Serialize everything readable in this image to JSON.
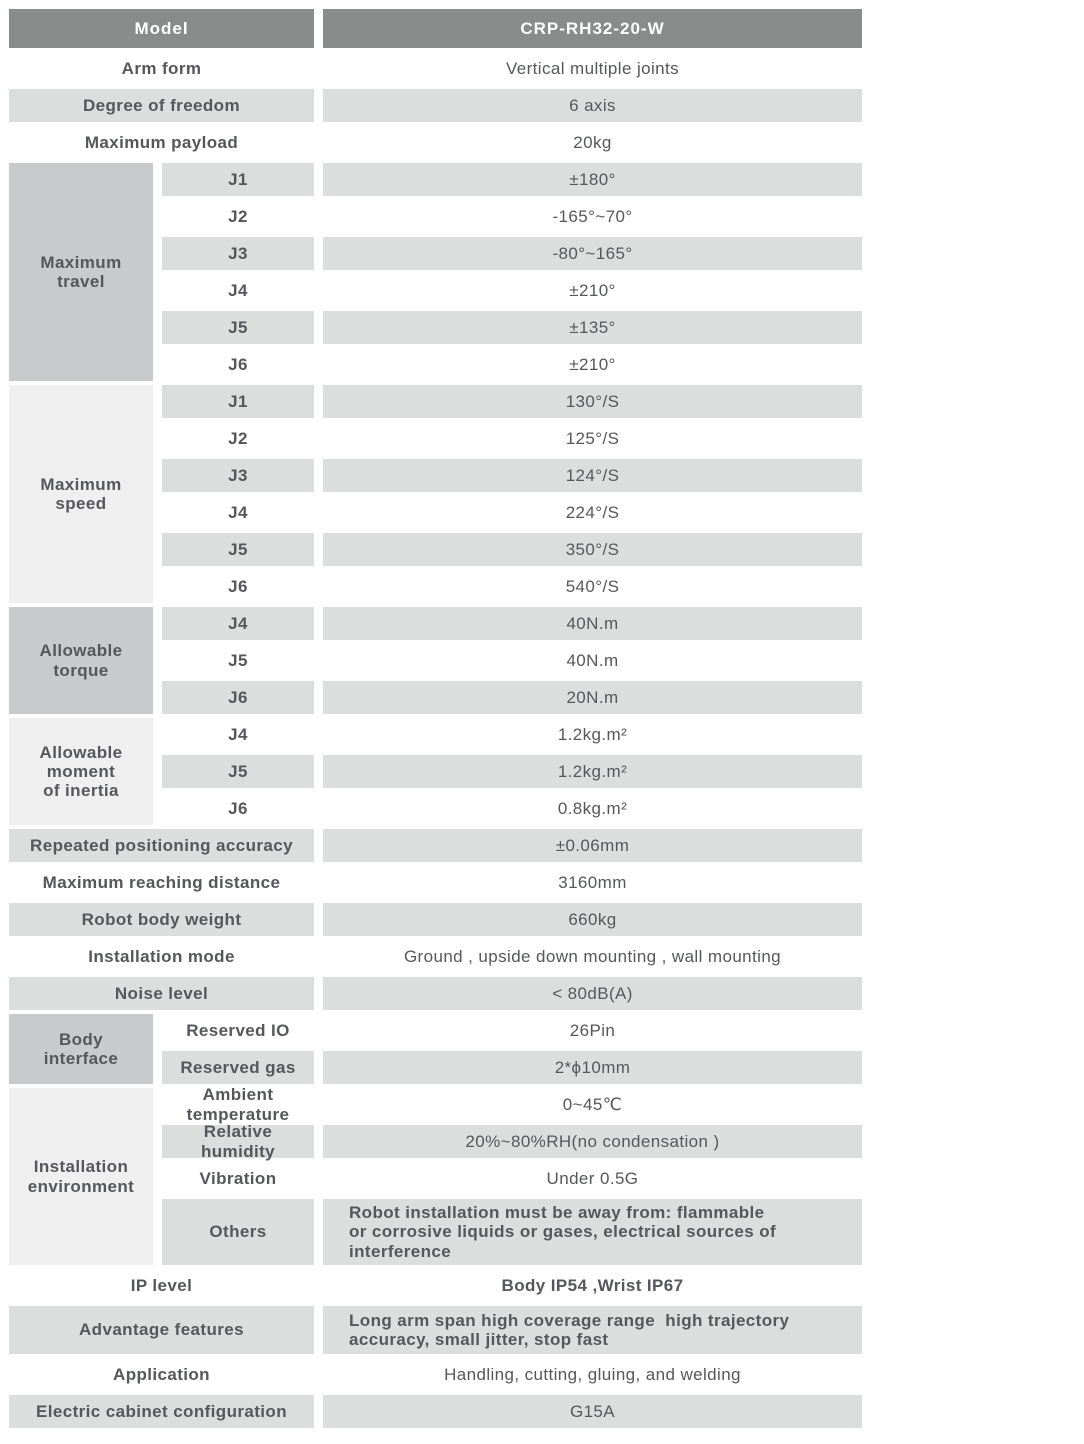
{
  "colors": {
    "header_bg": "#8a8c8c",
    "header_text": "#ffffff",
    "row_gray": "#dcdddd",
    "row_white": "#ffffff",
    "group_dark": "#c9cacb",
    "group_light": "#efefef",
    "text": "#55575a"
  },
  "table": {
    "header": {
      "label": "Model",
      "value": "CRP-RH32-20-W"
    },
    "rows": [
      {
        "label": "Arm form",
        "value": "Vertical multiple joints",
        "shade": "white"
      },
      {
        "label": "Degree of freedom",
        "value": "6 axis",
        "shade": "gray"
      },
      {
        "label": "Maximum payload",
        "value": "20kg",
        "shade": "white"
      },
      {
        "group": {
          "label": "Maximum\ntravel",
          "span": 6,
          "tone": "dark"
        },
        "sub": "J1",
        "value": "±180°",
        "shade": "gray"
      },
      {
        "sub": "J2",
        "value": "-165°~70°",
        "shade": "white"
      },
      {
        "sub": "J3",
        "value": "-80°~165°",
        "shade": "gray"
      },
      {
        "sub": "J4",
        "value": "±210°",
        "shade": "white"
      },
      {
        "sub": "J5",
        "value": "±135°",
        "shade": "gray"
      },
      {
        "sub": "J6",
        "value": "±210°",
        "shade": "white"
      },
      {
        "group": {
          "label": "Maximum\nspeed",
          "span": 6,
          "tone": "light"
        },
        "sub": "J1",
        "value": "130°/S",
        "shade": "gray"
      },
      {
        "sub": "J2",
        "value": "125°/S",
        "shade": "white"
      },
      {
        "sub": "J3",
        "value": "124°/S",
        "shade": "gray"
      },
      {
        "sub": "J4",
        "value": "224°/S",
        "shade": "white"
      },
      {
        "sub": "J5",
        "value": "350°/S",
        "shade": "gray"
      },
      {
        "sub": "J6",
        "value": "540°/S",
        "shade": "white"
      },
      {
        "group": {
          "label": "Allowable\ntorque",
          "span": 3,
          "tone": "dark"
        },
        "sub": "J4",
        "value": "40N.m",
        "shade": "gray"
      },
      {
        "sub": "J5",
        "value": "40N.m",
        "shade": "white"
      },
      {
        "sub": "J6",
        "value": "20N.m",
        "shade": "gray"
      },
      {
        "group": {
          "label": "Allowable\nmoment\nof inertia",
          "span": 3,
          "tone": "light"
        },
        "sub": "J4",
        "value": "1.2kg.m²",
        "shade": "white"
      },
      {
        "sub": "J5",
        "value": "1.2kg.m²",
        "shade": "gray"
      },
      {
        "sub": "J6",
        "value": "0.8kg.m²",
        "shade": "white"
      },
      {
        "label": "Repeated positioning accuracy",
        "value": "±0.06mm",
        "shade": "gray"
      },
      {
        "label": "Maximum reaching distance",
        "value": "3160mm",
        "shade": "white"
      },
      {
        "label": "Robot body weight",
        "value": "660kg",
        "shade": "gray"
      },
      {
        "label": "Installation mode",
        "value": "Ground ,  upside down mounting ,  wall mounting",
        "shade": "white"
      },
      {
        "label": "Noise  level",
        "value": "< 80dB(A)",
        "shade": "gray"
      },
      {
        "group": {
          "label": "Body\ninterface",
          "span": 2,
          "tone": "dark"
        },
        "sub": "Reserved IO",
        "value": "26Pin",
        "shade": "white"
      },
      {
        "sub": "Reserved gas",
        "value": "2*ϕ10mm",
        "shade": "gray"
      },
      {
        "group": {
          "label": "Installation\nenvironment",
          "span": 4,
          "tone": "light"
        },
        "sub": "Ambient\ntemperature",
        "value": "0~45℃",
        "shade": "white"
      },
      {
        "sub": "Relative\nhumidity",
        "value": "20%~80%RH(no condensation )",
        "shade": "gray"
      },
      {
        "sub": "Vibration",
        "value": "Under 0.5G",
        "shade": "white"
      },
      {
        "sub": "Others",
        "value": "Robot installation must be away from: flammable\nor corrosive liquids or gases, electrical sources of\ninterference",
        "shade": "gray",
        "height": 66,
        "align": "left",
        "bold": true
      },
      {
        "label": "IP level",
        "value": "Body IP54 ,Wrist IP67",
        "shade": "white",
        "bold": true
      },
      {
        "label": "Advantage features",
        "value": "Long arm span high coverage range  high trajectory\naccuracy, small jitter, stop fast",
        "shade": "gray",
        "height": 48,
        "align": "left",
        "bold": true
      },
      {
        "label": "Application",
        "value": "Handling, cutting, gluing, and welding",
        "shade": "white"
      },
      {
        "label": "Electric cabinet configuration",
        "value": "G15A",
        "shade": "gray"
      }
    ]
  }
}
